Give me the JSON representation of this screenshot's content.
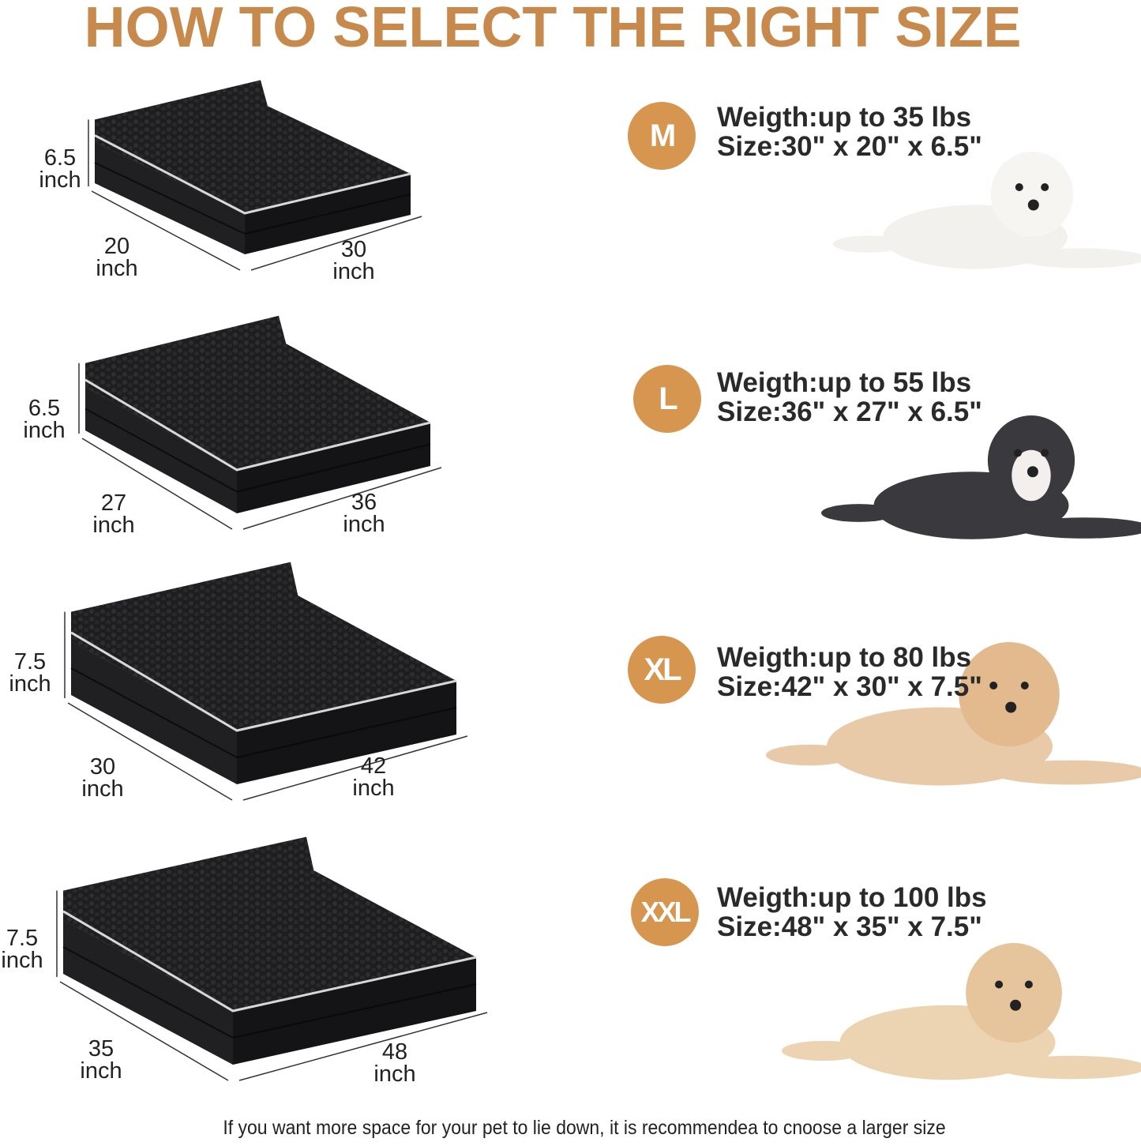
{
  "title": "HOW TO SELECT THE RIGHT SIZE",
  "colors": {
    "accent": "#D7964F",
    "title": "#C88A4C",
    "bed": "#1c1c1e",
    "piping": "#d8d8d8"
  },
  "sizes": [
    {
      "badge": "M",
      "weight": "Weigth:up to 35 lbs",
      "size": "Size:30\" x 20\" x 6.5\"",
      "height_dim": [
        "6.5",
        "inch"
      ],
      "depth_dim": [
        "20",
        "inch"
      ],
      "length_dim": [
        "30",
        "inch"
      ],
      "dog": "bichon"
    },
    {
      "badge": "L",
      "weight": "Weigth:up to 55 lbs",
      "size": "Size:36\" x 27\" x 6.5\"",
      "height_dim": [
        "6.5",
        "inch"
      ],
      "depth_dim": [
        "27",
        "inch"
      ],
      "length_dim": [
        "36",
        "inch"
      ],
      "dog": "husky"
    },
    {
      "badge": "XL",
      "weight": "Weigth:up to 80 lbs",
      "size": "Size:42\" x 30\" x 7.5\"",
      "height_dim": [
        "7.5",
        "inch"
      ],
      "depth_dim": [
        "30",
        "inch"
      ],
      "length_dim": [
        "42",
        "inch"
      ],
      "dog": "golden-retriever"
    },
    {
      "badge": "XXL",
      "weight": "Weigth:up to 100 lbs",
      "size": "Size:48\" x 35\" x 7.5\"",
      "height_dim": [
        "7.5",
        "inch"
      ],
      "depth_dim": [
        "35",
        "inch"
      ],
      "length_dim": [
        "48",
        "inch"
      ],
      "dog": "labrador"
    }
  ],
  "note": "If you want more space for your pet to lie down, it is recommendea to cnoose a larger size"
}
